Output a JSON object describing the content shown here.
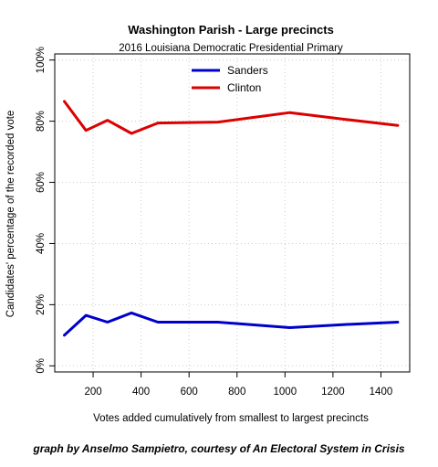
{
  "chart_data": {
    "type": "line",
    "title": "Washington Parish - Large precincts",
    "subtitle": "2016 Louisiana Democratic Presidential Primary",
    "xlabel": "Votes added cumulatively from smallest to largest precincts",
    "ylabel": "Candidates' percentage of the recorded vote",
    "xlim": [
      40,
      1520
    ],
    "ylim": [
      -2,
      102
    ],
    "x_ticks": [
      200,
      400,
      600,
      800,
      1000,
      1200,
      1400
    ],
    "x_tick_labels": [
      "200",
      "400",
      "600",
      "800",
      "1000",
      "1200",
      "1400"
    ],
    "y_ticks": [
      0,
      20,
      40,
      60,
      80,
      100
    ],
    "y_tick_labels": [
      "0%",
      "20%",
      "40%",
      "60%",
      "80%",
      "100%"
    ],
    "grid": true,
    "legend_position": "top-center",
    "series": [
      {
        "name": "Sanders",
        "color": "#0000cc",
        "x": [
          80,
          170,
          260,
          360,
          470,
          720,
          1020,
          1250,
          1470
        ],
        "y": [
          10,
          16.5,
          14.3,
          17.3,
          14.3,
          14.3,
          12.5,
          13.5,
          14.3
        ]
      },
      {
        "name": "Clinton",
        "color": "#dd0000",
        "x": [
          80,
          170,
          260,
          360,
          470,
          720,
          1020,
          1250,
          1470
        ],
        "y": [
          86.5,
          77,
          80.3,
          76,
          79.4,
          79.7,
          82.8,
          80.6,
          78.6
        ]
      }
    ]
  },
  "credit": "graph by Anselmo Sampietro, courtesy of An Electoral System in Crisis"
}
